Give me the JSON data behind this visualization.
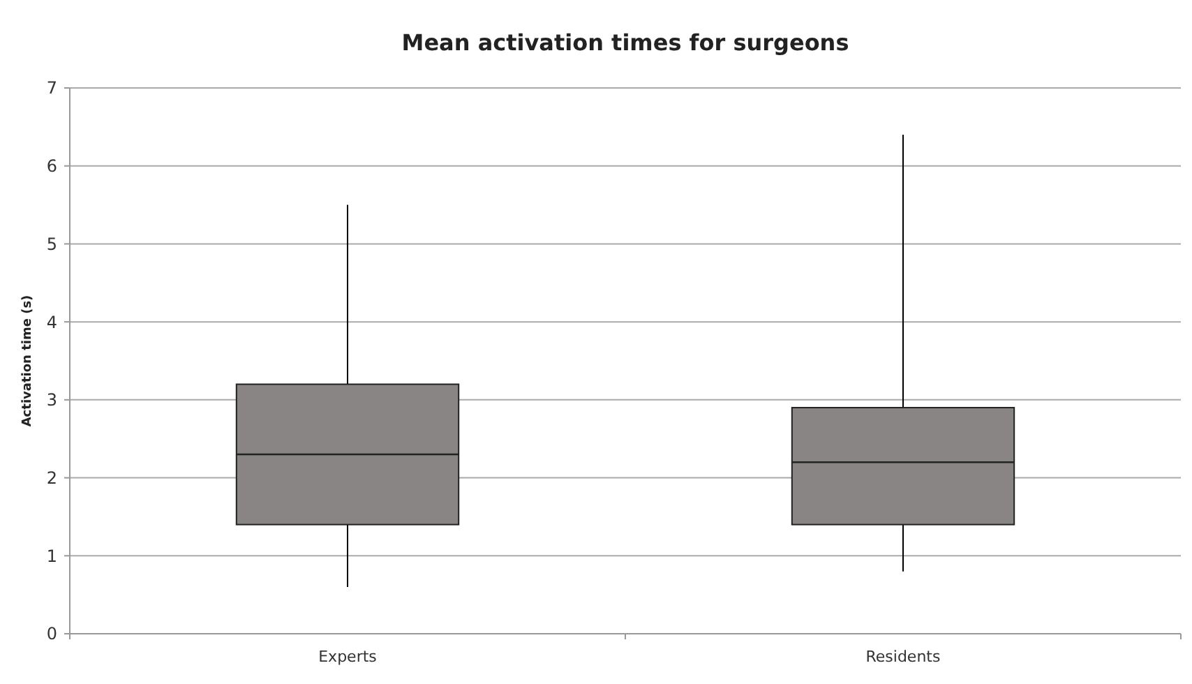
{
  "chart_data": {
    "type": "box",
    "title": "Mean activation times for surgeons",
    "ylabel": "Activation time (s)",
    "categories": [
      "Experts",
      "Residents"
    ],
    "boxes": [
      {
        "low": 0.6,
        "q1": 1.4,
        "median": 2.3,
        "q3": 3.2,
        "high": 5.5
      },
      {
        "low": 0.8,
        "q1": 1.4,
        "median": 2.2,
        "q3": 2.9,
        "high": 6.4
      }
    ],
    "color": "#898584",
    "ylim": [
      0,
      7
    ],
    "yticks": [
      0,
      1,
      2,
      3,
      4,
      5,
      6,
      7
    ],
    "grid": "y"
  }
}
